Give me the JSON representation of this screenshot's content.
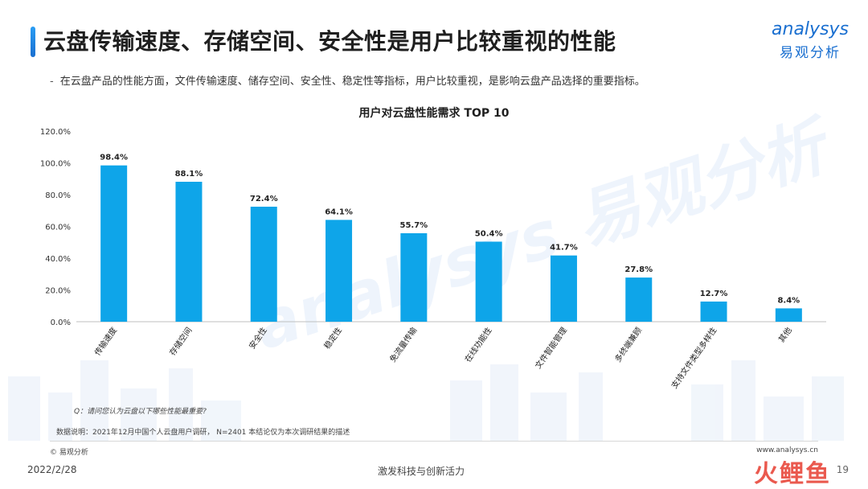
{
  "header": {
    "title": "云盘传输速度、存储空间、安全性是用户比较重视的性能",
    "subtitle_dash": "-",
    "subtitle": "在云盘产品的性能方面，文件传输速度、储存空间、安全性、稳定性等指标，用户比较重视，是影响云盘产品选择的重要指标。"
  },
  "logo": {
    "en": "analysys",
    "cn": "易观分析"
  },
  "colors": {
    "bar": "#0ea5e9",
    "accent": "#1a6fd0",
    "stamp": "#e8483b"
  },
  "chart_data": {
    "type": "bar",
    "title": "用户对云盘性能需求 TOP 10",
    "categories": [
      "传输速度",
      "存储空间",
      "安全性",
      "稳定性",
      "免流量传输",
      "在线功能性",
      "文件智能管理",
      "多终端兼顾",
      "支持文件类型多样性",
      "其他"
    ],
    "values": [
      98.4,
      88.1,
      72.4,
      64.1,
      55.7,
      50.4,
      41.7,
      27.8,
      12.7,
      8.4
    ],
    "value_labels": [
      "98.4%",
      "88.1%",
      "72.4%",
      "64.1%",
      "55.7%",
      "50.4%",
      "41.7%",
      "27.8%",
      "12.7%",
      "8.4%"
    ],
    "yticks": [
      0,
      20,
      40,
      60,
      80,
      100,
      120
    ],
    "ytick_labels": [
      "0.0%",
      "20.0%",
      "40.0%",
      "60.0%",
      "80.0%",
      "100.0%",
      "120.0%"
    ],
    "ylim": [
      0,
      120
    ],
    "grid": false,
    "legend": "none"
  },
  "notes": {
    "question": "Q：请问您认为云盘以下哪些性能最重要?",
    "source": "数据说明：2021年12月中国个人云盘用户调研， N=2401  本结论仅为本次调研结果的描述",
    "copyright": "© 易观分析",
    "site": "www.analysys.cn"
  },
  "footer": {
    "date": "2022/2/28",
    "slogan": "激发科技与创新活力",
    "page": "19",
    "stamp": "火鲤鱼"
  }
}
